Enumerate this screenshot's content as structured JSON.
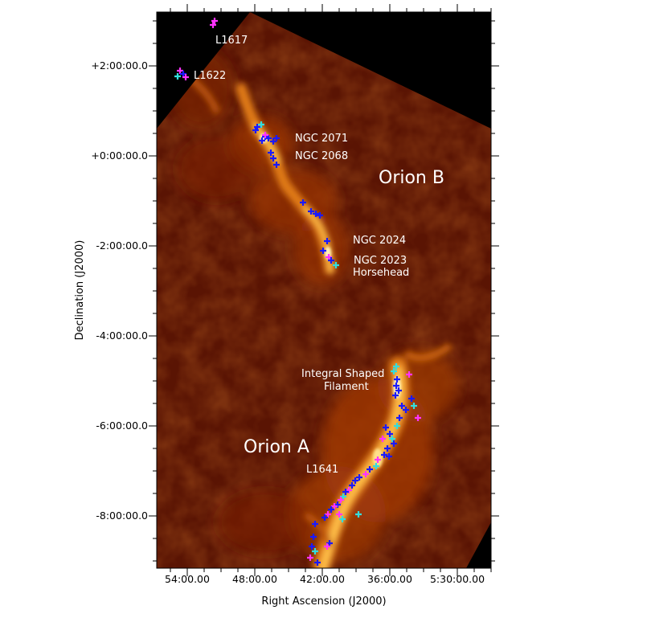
{
  "figure": {
    "xlabel": "Right Ascension (J2000)",
    "ylabel": "Declination (J2000)",
    "x_ticks": [
      "54:00.00",
      "48:00.00",
      "42:00.00",
      "36:00.00",
      "5:30:00.00"
    ],
    "y_ticks": [
      "+2:00:00.0",
      "+0:00:00.0",
      "-2:00:00.0",
      "-4:00:00.0",
      "-6:00:00.0",
      "-8:00:00.0"
    ],
    "colormap": [
      "#000000",
      "#4a0a02",
      "#7a1c05",
      "#b0400a",
      "#e07a18",
      "#ffc04a",
      "#fff2c0"
    ],
    "marker_colors": {
      "blue": "#1a1aff",
      "magenta": "#ff33ff",
      "cyan": "#33dddd"
    },
    "labels": {
      "l1617": "L1617",
      "l1622": "L1622",
      "ngc2071": "NGC 2071",
      "ngc2068": "NGC 2068",
      "orion_b": "Orion B",
      "ngc2024": "NGC 2024",
      "ngc2023": "NGC 2023",
      "horsehead": "Horsehead",
      "isf_line1": "Integral Shaped",
      "isf_line2": "Filament",
      "orion_a": "Orion A",
      "l1641": "L1641"
    }
  }
}
